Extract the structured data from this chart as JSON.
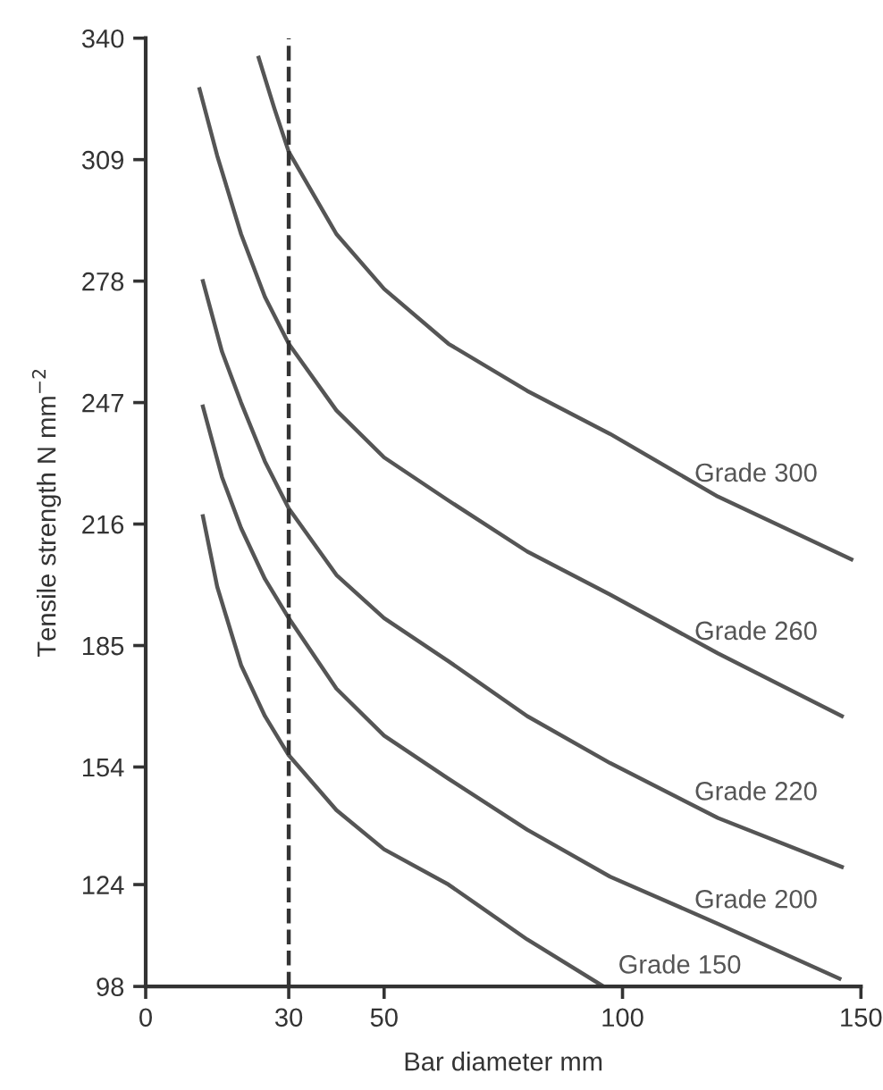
{
  "chart_data": {
    "type": "line",
    "xlabel": "Bar diameter mm",
    "ylabel": "Tensile strength N mm$^{−2}$",
    "xlim": [
      0,
      150
    ],
    "xticks": [
      0,
      30,
      50,
      100,
      150
    ],
    "ylim": [
      98,
      340
    ],
    "yticks": [
      98,
      124,
      154,
      185,
      216,
      247,
      278,
      309,
      340
    ],
    "grid": false,
    "legend": "right",
    "marker": "none",
    "line_style": "solid",
    "ref_lines": [
      {
        "axis": "x",
        "value": 30,
        "line_style": "dashed",
        "color": "#333333"
      }
    ],
    "series": [
      {
        "name": "Grade 300",
        "color": "#555555",
        "x": [
          23.7,
          27,
          30,
          40,
          50,
          63.5,
          80,
          97.4,
          120,
          148
        ],
        "values": [
          335,
          322,
          311,
          290,
          276,
          262,
          250,
          239,
          223,
          207
        ]
      },
      {
        "name": "Grade 260",
        "color": "#555555",
        "x": [
          11.3,
          15,
          20,
          25,
          30,
          40,
          50,
          63.5,
          80,
          97.4,
          120,
          146
        ],
        "values": [
          327,
          310,
          290,
          274,
          262,
          245,
          233,
          222,
          209,
          198,
          183,
          167
        ]
      },
      {
        "name": "Grade 220",
        "color": "#555555",
        "x": [
          12,
          16,
          20,
          25,
          30,
          40,
          50,
          63.5,
          80,
          97.4,
          120,
          146
        ],
        "values": [
          278,
          260,
          247,
          232,
          220,
          203,
          192,
          181,
          167,
          155,
          141,
          128.5
        ]
      },
      {
        "name": "Grade 200",
        "color": "#555555",
        "x": [
          12,
          16,
          20,
          25,
          30,
          40,
          50,
          63.5,
          80,
          97.4,
          120,
          145.5
        ],
        "values": [
          246,
          228,
          215,
          202,
          192,
          174,
          162,
          151,
          138,
          126,
          114,
          100
        ]
      },
      {
        "name": "Grade 150",
        "color": "#555555",
        "x": [
          12,
          15,
          20,
          25,
          30,
          40,
          50,
          63.5,
          80,
          96
        ],
        "values": [
          218,
          200,
          180,
          167,
          157,
          143,
          133,
          124,
          110,
          98
        ]
      }
    ]
  }
}
